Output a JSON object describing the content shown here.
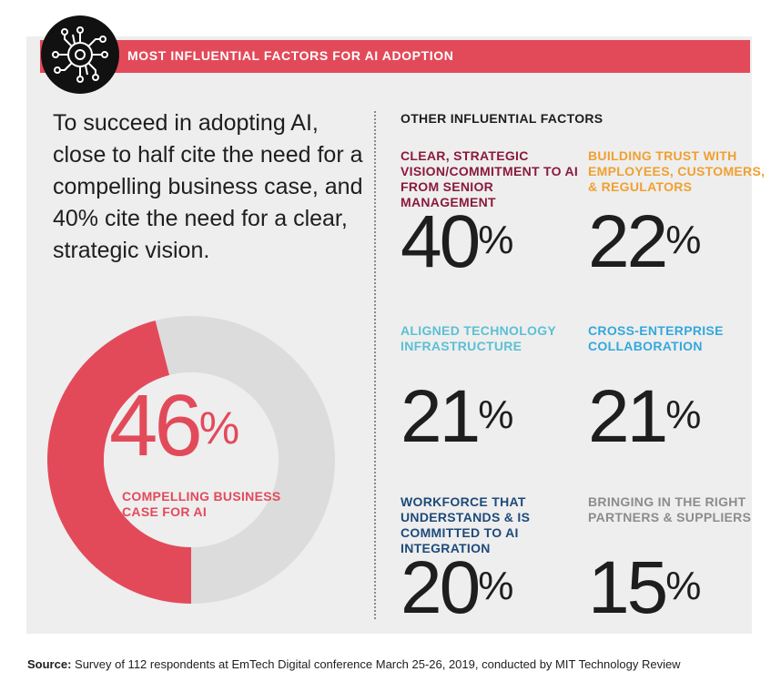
{
  "banner": {
    "title": "MOST INFLUENTIAL FACTORS FOR AI ADOPTION"
  },
  "intro": {
    "text": "To succeed in adopting AI, close to half cite the need for a compelling business case, and 40% cite the need for a clear, strategic vision."
  },
  "other": {
    "title": "OTHER INFLUENTIAL FACTORS"
  },
  "colors": {
    "accent": "#e24a5a",
    "donut_rest": "#dcdcdc",
    "maroon": "#8a1a3c",
    "orange": "#f0a030",
    "light_blue": "#5bc0d4",
    "blue": "#34a8dc",
    "navy": "#1e4a7a",
    "gray": "#8c8c8c"
  },
  "source": {
    "label": "Source:",
    "text": "Survey of 112 respondents at EmTech Digital conference March 25-26, 2019, conducted by MIT Technology Review"
  },
  "chart_data": [
    {
      "type": "pie",
      "variant": "donut",
      "values": [
        46,
        54
      ],
      "center_value": "46",
      "center_unit": "%",
      "label": "COMPELLING BUSINESS CASE FOR AI"
    },
    {
      "type": "table",
      "columns": [
        "factor",
        "percent"
      ],
      "rows": [
        {
          "label": "CLEAR, STRATEGIC VISION/COMMITMENT TO AI FROM SENIOR MANAGEMENT",
          "value": "40",
          "unit": "%",
          "color": "#8a1a3c"
        },
        {
          "label": "BUILDING TRUST WITH EMPLOYEES, CUSTOMERS, & REGULATORS",
          "value": "22",
          "unit": "%",
          "color": "#f0a030"
        },
        {
          "label": "ALIGNED TECHNOLOGY INFRASTRUCTURE",
          "value": "21",
          "unit": "%",
          "color": "#5bc0d4"
        },
        {
          "label": "CROSS-ENTERPRISE COLLABORATION",
          "value": "21",
          "unit": "%",
          "color": "#34a8dc"
        },
        {
          "label": "WORKFORCE THAT UNDERSTANDS & IS COMMITTED TO AI INTEGRATION",
          "value": "20",
          "unit": "%",
          "color": "#1e4a7a"
        },
        {
          "label": "BRINGING IN THE RIGHT PARTNERS & SUPPLIERS",
          "value": "15",
          "unit": "%",
          "color": "#8c8c8c"
        }
      ]
    }
  ]
}
